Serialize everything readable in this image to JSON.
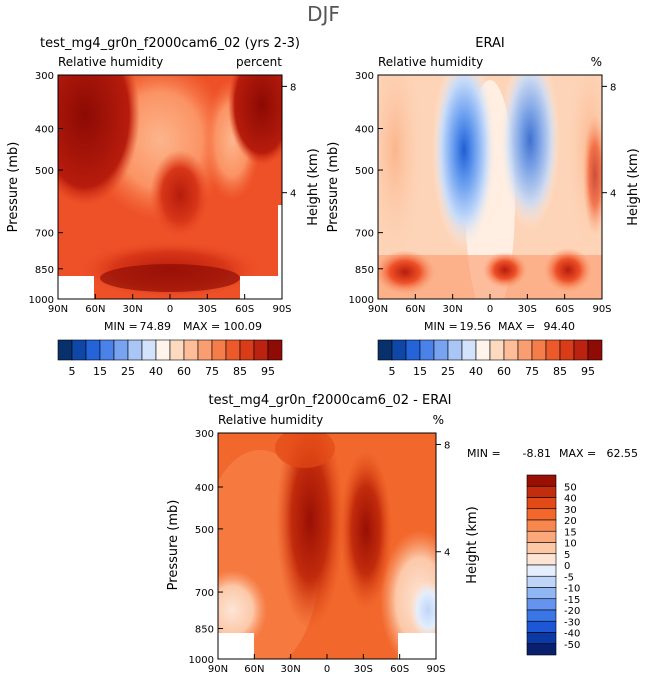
{
  "page_title": "DJF",
  "colors": {
    "diverging": [
      "#08306b",
      "#0d47a1",
      "#1e5fd6",
      "#3d7ce8",
      "#6b9ff0",
      "#9dc0f5",
      "#c6dbfa",
      "#e8f1fd",
      "#fff1e6",
      "#fdd4b8",
      "#fcb58c",
      "#fb9364",
      "#f77443",
      "#ee5128",
      "#d83618",
      "#b71c0c",
      "#8c0a04"
    ],
    "abs_scale": [
      "#08306b",
      "#0f47a8",
      "#2463d9",
      "#4a82ea",
      "#78a3f1",
      "#a9c6f7",
      "#d2e3fb",
      "#fff4ec",
      "#fdd9c0",
      "#fcbd98",
      "#fa9d70",
      "#f57d4c",
      "#ec5a2c",
      "#d93c19",
      "#bb2210",
      "#8f0b05"
    ],
    "diff_scale": [
      "#08206e",
      "#0b3aa5",
      "#1d57d8",
      "#3b76e6",
      "#6494ef",
      "#91b6f4",
      "#bfd5f8",
      "#e4eefc",
      "#fde5d6",
      "#fcc8a8",
      "#fba77c",
      "#f8874f",
      "#f2682c",
      "#e24a17",
      "#c32c0c",
      "#990f04"
    ]
  },
  "chart_data": [
    {
      "id": "model",
      "type": "heatmap",
      "title": "test_mg4_gr0n_f2000cam6_02 (yrs 2-3)",
      "subtitle_left": "Relative humidity",
      "subtitle_right": "percent",
      "ylabel": "Pressure (mb)",
      "ylabel_right": "Height (km)",
      "x_ticks": [
        "90N",
        "60N",
        "30N",
        "0",
        "30S",
        "60S",
        "90S"
      ],
      "y_ticks": [
        "300",
        "400",
        "500",
        "700",
        "850",
        "1000"
      ],
      "height_ticks": [
        "8",
        "4"
      ],
      "min_label": "MIN =",
      "min_value": "74.89",
      "max_label": "MAX =",
      "max_value": "100.09",
      "colorbar_levels": [
        "5",
        "15",
        "25",
        "40",
        "60",
        "75",
        "85",
        "95"
      ]
    },
    {
      "id": "obs",
      "type": "heatmap",
      "title": "ERAI",
      "subtitle_left": "Relative humidity",
      "subtitle_right": "%",
      "ylabel": "Pressure (mb)",
      "ylabel_right": "Height (km)",
      "x_ticks": [
        "90N",
        "60N",
        "30N",
        "0",
        "30S",
        "60S",
        "90S"
      ],
      "y_ticks": [
        "300",
        "400",
        "500",
        "700",
        "850",
        "1000"
      ],
      "height_ticks": [
        "8",
        "4"
      ],
      "min_label": "MIN =",
      "min_value": "19.56",
      "max_label": "MAX =",
      "max_value": "94.40",
      "colorbar_levels": [
        "5",
        "15",
        "25",
        "40",
        "60",
        "75",
        "85",
        "95"
      ]
    },
    {
      "id": "diff",
      "type": "heatmap",
      "title": "test_mg4_gr0n_f2000cam6_02 - ERAI",
      "subtitle_left": "Relative humidity",
      "subtitle_right": "%",
      "ylabel": "Pressure (mb)",
      "ylabel_right": "Height (km)",
      "x_ticks": [
        "90N",
        "60N",
        "30N",
        "0",
        "30S",
        "60S",
        "90S"
      ],
      "y_ticks": [
        "300",
        "400",
        "500",
        "700",
        "850",
        "1000"
      ],
      "height_ticks": [
        "8",
        "4"
      ],
      "min_label": "MIN =",
      "min_value": "-8.81",
      "max_label": "MAX =",
      "max_value": "62.55",
      "colorbar_levels": [
        "50",
        "40",
        "30",
        "20",
        "15",
        "10",
        "5",
        "0",
        "-5",
        "-10",
        "-15",
        "-20",
        "-30",
        "-40",
        "-50"
      ]
    }
  ]
}
